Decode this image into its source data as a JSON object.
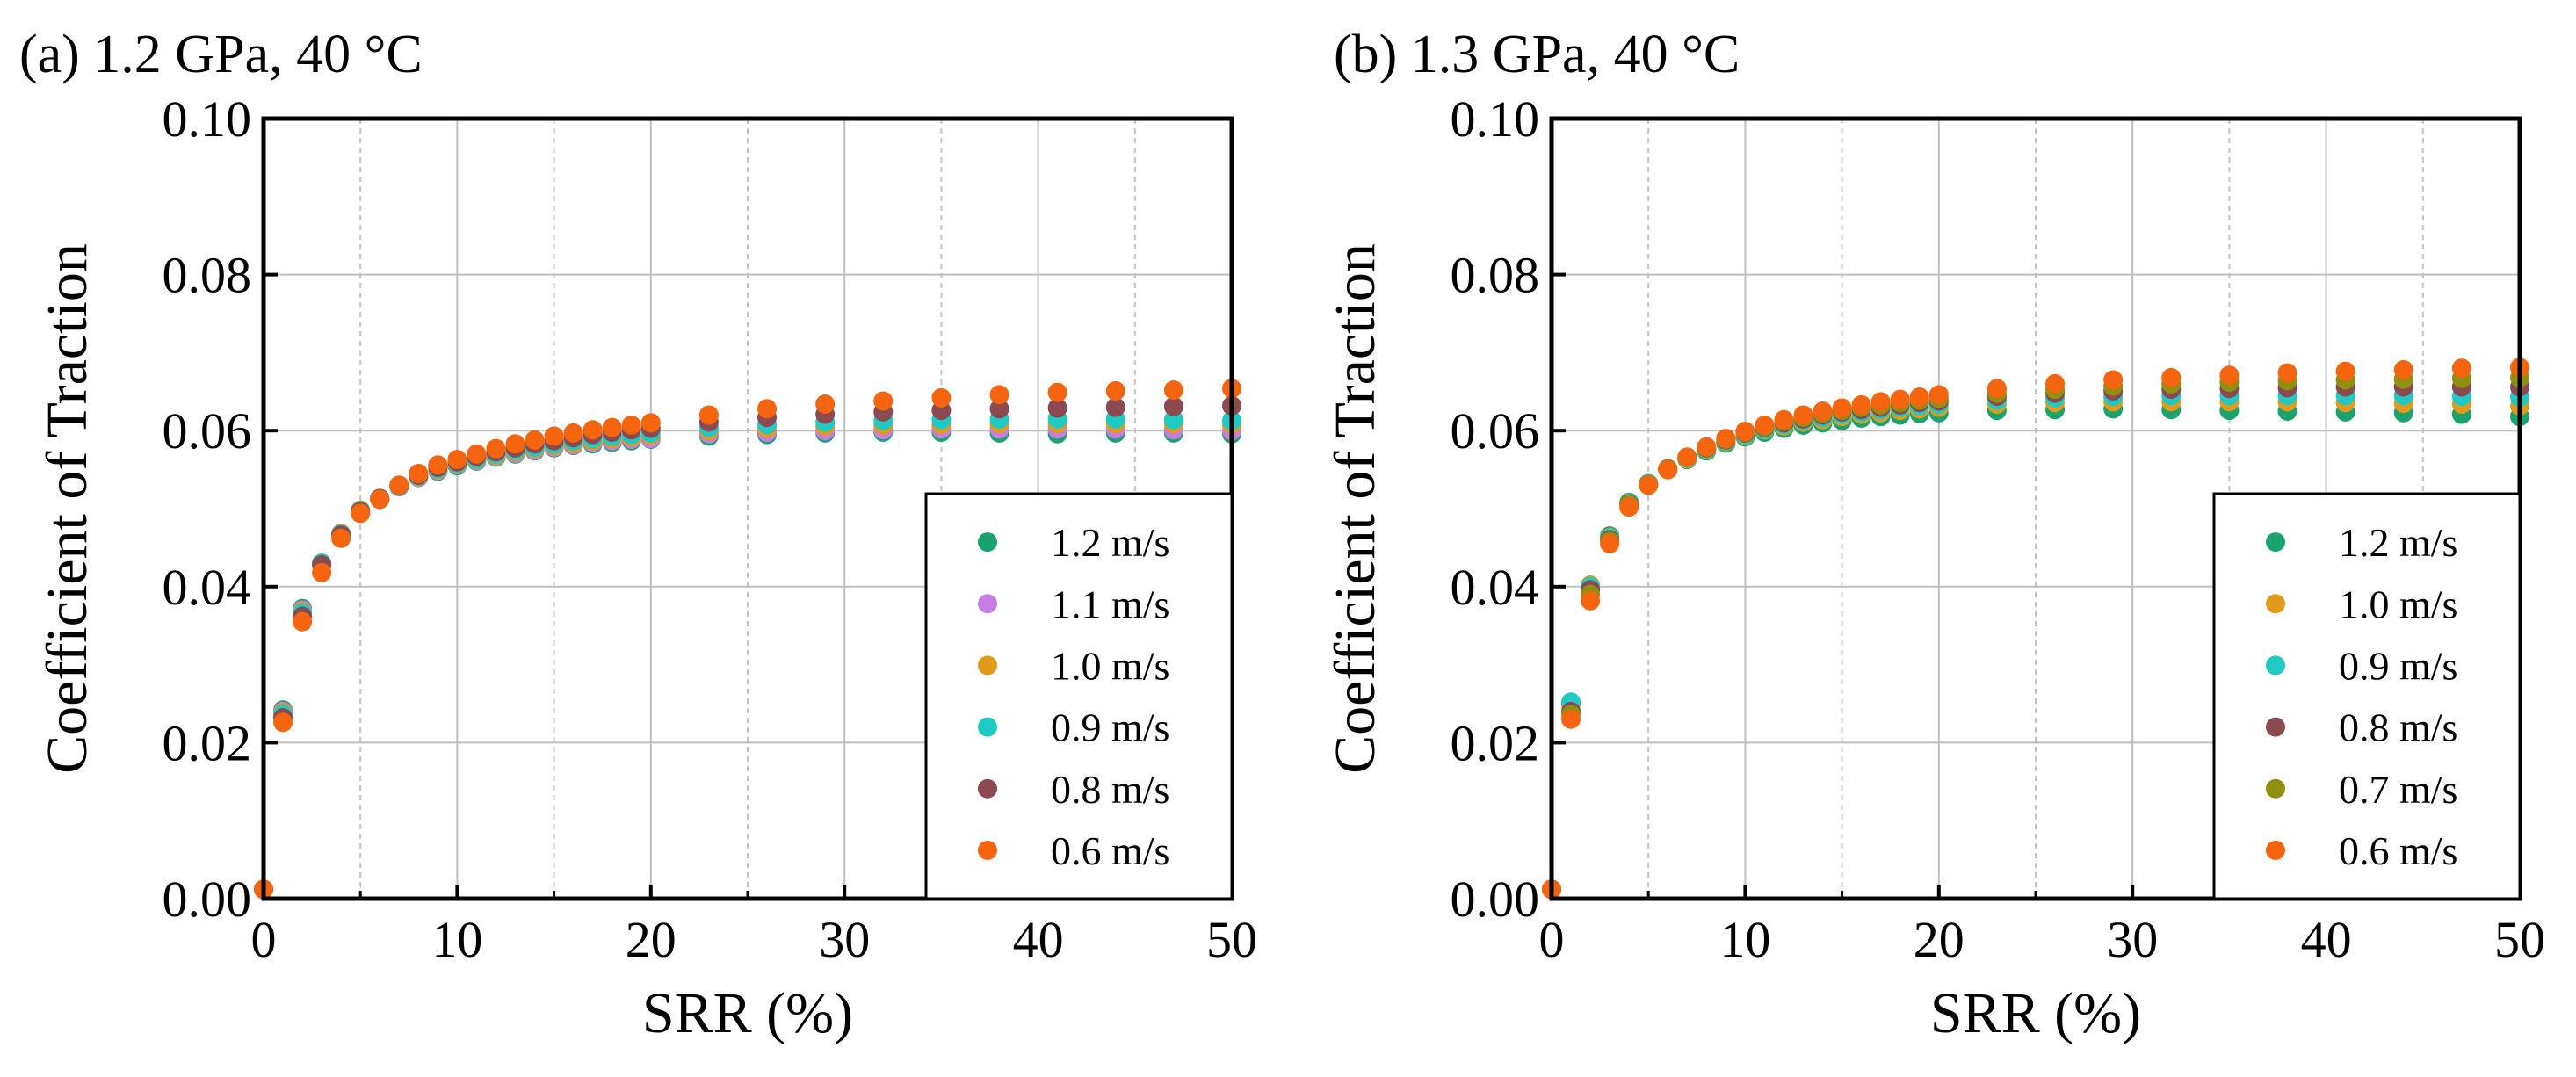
{
  "chart_data": [
    {
      "type": "scatter",
      "title": "(a) 1.2 GPa, 40 °C",
      "xlabel": "SRR (%)",
      "ylabel": "Coefficient of Traction",
      "xlim": [
        0,
        50
      ],
      "ylim": [
        0,
        0.1
      ],
      "xticks": [
        "0",
        "10",
        "20",
        "30",
        "40",
        "50"
      ],
      "yticks": [
        "0.00",
        "0.02",
        "0.04",
        "0.06",
        "0.08",
        "0.10"
      ],
      "grid": true,
      "legend_position": "bottom-right",
      "x": [
        0,
        1,
        2,
        3,
        4,
        5,
        6,
        7,
        8,
        9,
        10,
        11,
        12,
        13,
        14,
        15,
        16,
        17,
        18,
        19,
        20,
        23,
        26,
        29,
        32,
        35,
        38,
        41,
        44,
        47,
        50
      ],
      "series": [
        {
          "name": "1.2 m/s",
          "color": "#1aa36f",
          "values": [
            0.0012,
            0.0242,
            0.0372,
            0.0428,
            0.0468,
            0.0498,
            0.0512,
            0.0528,
            0.054,
            0.0548,
            0.0555,
            0.0561,
            0.0566,
            0.057,
            0.0574,
            0.0578,
            0.0581,
            0.0583,
            0.0585,
            0.0587,
            0.0589,
            0.0593,
            0.0595,
            0.0597,
            0.0598,
            0.0598,
            0.0597,
            0.0596,
            0.0597,
            0.0597,
            0.0596
          ]
        },
        {
          "name": "1.1 m/s",
          "color": "#c67ee0",
          "values": [
            0.0012,
            0.024,
            0.037,
            0.043,
            0.0468,
            0.0498,
            0.0512,
            0.0528,
            0.054,
            0.0549,
            0.0556,
            0.0562,
            0.0567,
            0.0571,
            0.0575,
            0.0579,
            0.0582,
            0.0585,
            0.0587,
            0.0589,
            0.059,
            0.0596,
            0.0598,
            0.06,
            0.0601,
            0.0602,
            0.0602,
            0.0602,
            0.0602,
            0.0601,
            0.06
          ]
        },
        {
          "name": "1.0 m/s",
          "color": "#e09b1a",
          "values": [
            0.0012,
            0.0238,
            0.0368,
            0.043,
            0.0468,
            0.0498,
            0.0513,
            0.0529,
            0.0541,
            0.055,
            0.0557,
            0.0563,
            0.0568,
            0.0573,
            0.0577,
            0.0581,
            0.0584,
            0.0587,
            0.059,
            0.0592,
            0.0594,
            0.06,
            0.0603,
            0.0606,
            0.0607,
            0.0608,
            0.0609,
            0.0609,
            0.0609,
            0.0609,
            0.0608
          ]
        },
        {
          "name": "0.9 m/s",
          "color": "#1fc9c4",
          "values": [
            0.0012,
            0.0236,
            0.0366,
            0.043,
            0.0467,
            0.0497,
            0.0513,
            0.0529,
            0.0542,
            0.0551,
            0.0558,
            0.0564,
            0.057,
            0.0575,
            0.0579,
            0.0583,
            0.0587,
            0.059,
            0.0593,
            0.0595,
            0.0597,
            0.0604,
            0.0608,
            0.0611,
            0.0613,
            0.0614,
            0.0615,
            0.0615,
            0.0615,
            0.0614,
            0.0613
          ]
        },
        {
          "name": "0.8 m/s",
          "color": "#8b4a52",
          "values": [
            0.0012,
            0.0232,
            0.0362,
            0.0428,
            0.0466,
            0.0496,
            0.0513,
            0.053,
            0.0543,
            0.0553,
            0.056,
            0.0567,
            0.0573,
            0.0578,
            0.0583,
            0.0587,
            0.0591,
            0.0595,
            0.0598,
            0.0601,
            0.0603,
            0.0611,
            0.0617,
            0.0621,
            0.0624,
            0.0626,
            0.0628,
            0.0629,
            0.063,
            0.0631,
            0.0632
          ]
        },
        {
          "name": "0.6 m/s",
          "color": "#f5650f",
          "values": [
            0.0012,
            0.0226,
            0.0355,
            0.0418,
            0.0462,
            0.0494,
            0.0512,
            0.053,
            0.0545,
            0.0556,
            0.0563,
            0.057,
            0.0577,
            0.0583,
            0.0588,
            0.0593,
            0.0597,
            0.0601,
            0.0604,
            0.0607,
            0.061,
            0.062,
            0.0628,
            0.0634,
            0.0638,
            0.0642,
            0.0646,
            0.0649,
            0.0651,
            0.0652,
            0.0654
          ]
        }
      ]
    },
    {
      "type": "scatter",
      "title": "(b) 1.3 GPa, 40 °C",
      "xlabel": "SRR (%)",
      "ylabel": "Coefficient of Traction",
      "xlim": [
        0,
        50
      ],
      "ylim": [
        0,
        0.1
      ],
      "xticks": [
        "0",
        "10",
        "20",
        "30",
        "40",
        "50"
      ],
      "yticks": [
        "0.00",
        "0.02",
        "0.04",
        "0.06",
        "0.08",
        "0.10"
      ],
      "grid": true,
      "legend_position": "bottom-right",
      "x": [
        0,
        1,
        2,
        3,
        4,
        5,
        6,
        7,
        8,
        9,
        10,
        11,
        12,
        13,
        14,
        15,
        16,
        17,
        18,
        19,
        20,
        23,
        26,
        29,
        32,
        35,
        38,
        41,
        44,
        47,
        50
      ],
      "series": [
        {
          "name": "1.2 m/s",
          "color": "#1aa36f",
          "values": [
            0.0012,
            0.025,
            0.0398,
            0.0465,
            0.0508,
            0.0532,
            0.055,
            0.0563,
            0.0574,
            0.0584,
            0.0592,
            0.0598,
            0.0603,
            0.0607,
            0.061,
            0.0613,
            0.0616,
            0.0618,
            0.062,
            0.0622,
            0.0623,
            0.0626,
            0.0627,
            0.0628,
            0.0627,
            0.0626,
            0.0625,
            0.0624,
            0.0623,
            0.0621,
            0.0618
          ]
        },
        {
          "name": "1.0 m/s",
          "color": "#e09b1a",
          "values": [
            0.0012,
            0.0248,
            0.0402,
            0.0463,
            0.0507,
            0.0532,
            0.055,
            0.0564,
            0.0576,
            0.0586,
            0.0594,
            0.0601,
            0.0606,
            0.0611,
            0.0614,
            0.0618,
            0.0621,
            0.0623,
            0.0626,
            0.0628,
            0.063,
            0.0634,
            0.0636,
            0.0637,
            0.0637,
            0.0637,
            0.0637,
            0.0636,
            0.0635,
            0.0634,
            0.0632
          ]
        },
        {
          "name": "0.9 m/s",
          "color": "#1fc9c4",
          "values": [
            0.0012,
            0.0252,
            0.04,
            0.0462,
            0.0507,
            0.0532,
            0.0551,
            0.0565,
            0.0577,
            0.0587,
            0.0595,
            0.0602,
            0.0608,
            0.0613,
            0.0617,
            0.0621,
            0.0624,
            0.0627,
            0.063,
            0.0632,
            0.0634,
            0.0639,
            0.0642,
            0.0644,
            0.0645,
            0.0645,
            0.0645,
            0.0645,
            0.0645,
            0.0644,
            0.0643
          ]
        },
        {
          "name": "0.8 m/s",
          "color": "#8b4a52",
          "values": [
            0.0012,
            0.024,
            0.0396,
            0.046,
            0.0506,
            0.0531,
            0.0551,
            0.0566,
            0.0578,
            0.0588,
            0.0597,
            0.0604,
            0.061,
            0.0615,
            0.062,
            0.0624,
            0.0627,
            0.063,
            0.0633,
            0.0636,
            0.0638,
            0.0644,
            0.0648,
            0.0651,
            0.0653,
            0.0654,
            0.0655,
            0.0656,
            0.0656,
            0.0656,
            0.0656
          ]
        },
        {
          "name": "0.7 m/s",
          "color": "#8f8f12",
          "values": [
            0.0012,
            0.0236,
            0.039,
            0.0458,
            0.0505,
            0.0531,
            0.0551,
            0.0566,
            0.0579,
            0.0589,
            0.0598,
            0.0605,
            0.0612,
            0.0617,
            0.0622,
            0.0626,
            0.063,
            0.0633,
            0.0636,
            0.0639,
            0.0641,
            0.0648,
            0.0653,
            0.0657,
            0.066,
            0.0662,
            0.0664,
            0.0665,
            0.0666,
            0.0667,
            0.0668
          ]
        },
        {
          "name": "0.6 m/s",
          "color": "#f5650f",
          "values": [
            0.0012,
            0.023,
            0.0382,
            0.0455,
            0.0502,
            0.053,
            0.055,
            0.0566,
            0.0579,
            0.059,
            0.0599,
            0.0607,
            0.0614,
            0.062,
            0.0625,
            0.0629,
            0.0633,
            0.0637,
            0.064,
            0.0643,
            0.0646,
            0.0654,
            0.066,
            0.0665,
            0.0668,
            0.0671,
            0.0674,
            0.0676,
            0.0678,
            0.068,
            0.0681
          ]
        }
      ]
    }
  ]
}
